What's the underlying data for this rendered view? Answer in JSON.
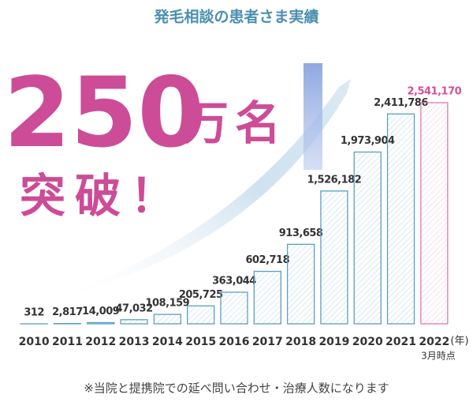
{
  "chart_data": {
    "type": "bar",
    "title": "発毛相談の患者さま実績",
    "headline": "250",
    "headline_unit": "万名",
    "headline_sub": "突破！",
    "categories": [
      "2010",
      "2011",
      "2012",
      "2013",
      "2014",
      "2015",
      "2016",
      "2017",
      "2018",
      "2019",
      "2020",
      "2021",
      "2022"
    ],
    "values": [
      312,
      2817,
      14009,
      47032,
      108159,
      205725,
      363044,
      602718,
      913658,
      1526182,
      1973904,
      2411786,
      2541170
    ],
    "value_labels": [
      "312",
      "2,817",
      "14,009",
      "47,032",
      "108,159",
      "205,725",
      "363,044",
      "602,718",
      "913,658",
      "1,526,182",
      "1,973,904",
      "2,411,786",
      "2,541,170"
    ],
    "colors": [
      "#5b9fc4",
      "#5b9fc4",
      "#5b9fc4",
      "#5b9fc4",
      "#5b9fc4",
      "#5b9fc4",
      "#5b9fc4",
      "#5b9fc4",
      "#5b9fc4",
      "#5b9fc4",
      "#5b9fc4",
      "#5b9fc4",
      "#e07ab0"
    ],
    "label_colors": [
      "#333333",
      "#333333",
      "#333333",
      "#333333",
      "#333333",
      "#333333",
      "#333333",
      "#333333",
      "#333333",
      "#333333",
      "#333333",
      "#333333",
      "#d64f98"
    ],
    "x_unit": "(年)",
    "x_note": "3月時点",
    "footnote": "※当院と提携院での延べ問い合わせ・治療人数になります"
  }
}
